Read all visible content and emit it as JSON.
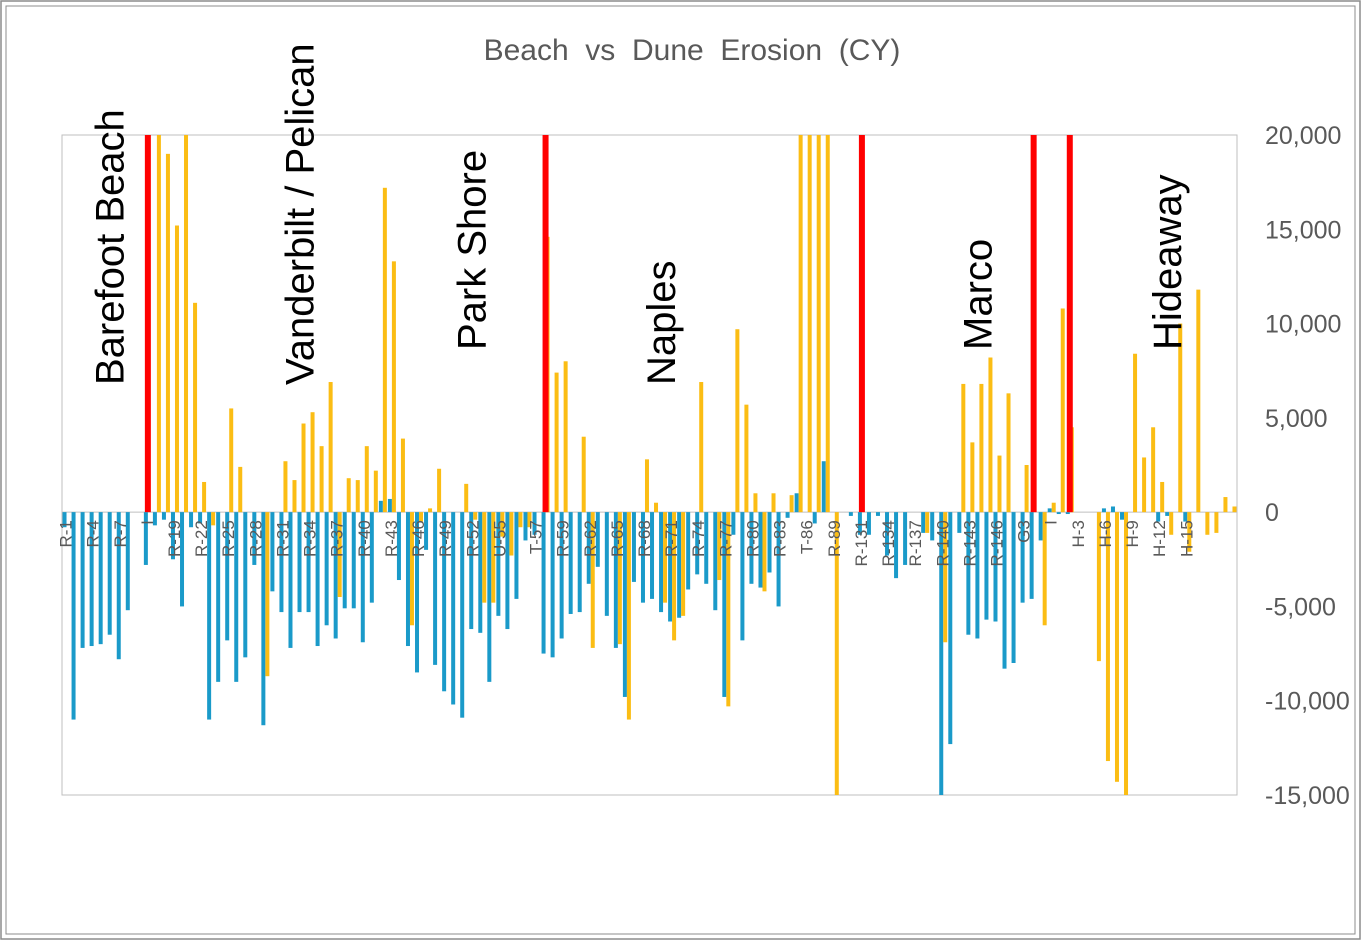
{
  "chart_data": {
    "type": "bar",
    "title": "Beach  vs  Dune  Erosion  (CY)",
    "ylim": [
      -15000,
      20000
    ],
    "yticks": [
      20000,
      15000,
      10000,
      5000,
      0,
      -5000,
      -10000,
      -15000
    ],
    "ytick_labels": [
      "20,000",
      "15,000",
      "10,000",
      "5,000",
      "0",
      "-5,000",
      "-10,000",
      "-15,000"
    ],
    "grid": false,
    "colors": {
      "beach": "#1a9ac9",
      "dune": "#fbbd14",
      "divider": "#ff0000",
      "axis": "#bfbfbf",
      "text": "#595959"
    },
    "section_labels": [
      "Barefoot Beach",
      "Vanderbilt / Pelican",
      "Park Shore",
      "Naples",
      "Marco",
      "Hideaway"
    ],
    "x": [
      "R-1",
      "R-4",
      "R-7",
      "I",
      "R-19",
      "R-22",
      "R-25",
      "R-28",
      "R-31",
      "R-34",
      "R-37",
      "R-40",
      "R-43",
      "R-46",
      "R-49",
      "R-52",
      "U-55",
      "T-57",
      "R-59",
      "R-62",
      "R-65",
      "R-68",
      "R-71",
      "R-74",
      "R-77",
      "R-80",
      "R-83",
      "T-86",
      "R-89",
      "R-131",
      "R-134",
      "R-137",
      "R-140",
      "R-143",
      "R-146",
      "G3",
      "I",
      "H-3",
      "H-6",
      "H-9",
      "H-12",
      "H-15"
    ],
    "series": [
      {
        "values": [
          [
            -800,
            0
          ],
          [
            -11000,
            0
          ],
          [
            -7200,
            0
          ],
          [
            -7100,
            0
          ],
          [
            -7000,
            0
          ],
          [
            -6500,
            0
          ],
          [
            -7800,
            0
          ],
          [
            -5200,
            0
          ],
          [
            0,
            0
          ],
          [
            -2800,
            0
          ],
          [
            -700,
            20000
          ],
          [
            -400,
            19000
          ],
          [
            -2500,
            15200
          ],
          [
            -5000,
            20000
          ],
          [
            -800,
            11100
          ],
          [
            -600,
            1600
          ],
          [
            -11000,
            -700
          ],
          [
            -9000,
            0
          ],
          [
            -6800,
            5500
          ],
          [
            -9000,
            2400
          ],
          [
            -7700,
            0
          ],
          [
            -2800,
            0
          ],
          [
            -11300,
            -8700
          ],
          [
            -4200,
            0
          ],
          [
            -5300,
            2700
          ],
          [
            -7200,
            1700
          ],
          [
            -5300,
            4700
          ],
          [
            -5300,
            5300
          ],
          [
            -7100,
            3500
          ],
          [
            -6000,
            6900
          ],
          [
            -6700,
            -4500
          ],
          [
            -5100,
            1800
          ],
          [
            -5100,
            1700
          ],
          [
            -6900,
            3500
          ],
          [
            -4800,
            2200
          ],
          [
            600,
            17200
          ],
          [
            700,
            13300
          ],
          [
            -3600,
            3900
          ],
          [
            -7100,
            -6000
          ],
          [
            -8500,
            -500
          ],
          [
            -2000,
            200
          ],
          [
            -8100,
            2300
          ],
          [
            -9500,
            0
          ],
          [
            -10200,
            0
          ],
          [
            -10900,
            1500
          ],
          [
            -6200,
            -400
          ],
          [
            -6400,
            -4800
          ],
          [
            -9000,
            -4800
          ],
          [
            -5500,
            -1300
          ],
          [
            -6200,
            -2300
          ],
          [
            -4600,
            -800
          ],
          [
            -1500,
            -800
          ],
          [
            -1200,
            0
          ],
          [
            -7500,
            14600
          ],
          [
            -7700,
            7400
          ],
          [
            -6700,
            8000
          ],
          [
            -5400,
            0
          ],
          [
            -5300,
            4000
          ],
          [
            -3800,
            -7200
          ],
          [
            -2900,
            0
          ],
          [
            -5500,
            0
          ],
          [
            -7200,
            -7000
          ],
          [
            -9800,
            -11000
          ],
          [
            -3700,
            0
          ],
          [
            -4800,
            2800
          ],
          [
            -4600,
            500
          ],
          [
            -5300,
            -4800
          ],
          [
            -5800,
            -6800
          ],
          [
            -5600,
            -5500
          ],
          [
            -4100,
            0
          ],
          [
            -3300,
            6900
          ],
          [
            -3800,
            0
          ],
          [
            -5200,
            -3600
          ],
          [
            -9800,
            -10300
          ],
          [
            -1200,
            9700
          ],
          [
            -6800,
            5700
          ],
          [
            -3800,
            1000
          ],
          [
            -4000,
            -4200
          ],
          [
            -3200,
            1000
          ],
          [
            -5000,
            0
          ],
          [
            -300,
            900
          ],
          [
            1000,
            20000
          ],
          [
            0,
            20000
          ],
          [
            -600,
            20000
          ],
          [
            2700,
            20000
          ],
          [
            0,
            -15000
          ],
          [
            0,
            0
          ],
          [
            -200,
            0
          ],
          [
            -1200,
            0
          ],
          [
            -1200,
            0
          ],
          [
            -200,
            0
          ],
          [
            -2300,
            0
          ],
          [
            -3500,
            0
          ],
          [
            -2800,
            0
          ],
          [
            0,
            0
          ],
          [
            -1100,
            -1100
          ],
          [
            -1500,
            0
          ],
          [
            -15000,
            -6900
          ],
          [
            -12300,
            0
          ],
          [
            -1100,
            6800
          ],
          [
            -6500,
            3700
          ],
          [
            -6700,
            6800
          ],
          [
            -5700,
            8200
          ],
          [
            -5800,
            3000
          ],
          [
            -8300,
            6300
          ],
          [
            -8000,
            0
          ],
          [
            -4800,
            2500
          ],
          [
            -4600,
            0
          ],
          [
            -1500,
            -6000
          ],
          [
            200,
            500
          ],
          [
            -100,
            10800
          ],
          [
            -100,
            4500
          ],
          [
            0,
            0
          ],
          [
            0,
            0
          ],
          [
            0,
            -7900
          ],
          [
            200,
            -13200
          ],
          [
            300,
            -14300
          ],
          [
            -400,
            -15000
          ],
          [
            0,
            8400
          ],
          [
            0,
            2900
          ],
          [
            0,
            4500
          ],
          [
            -500,
            1600
          ],
          [
            -200,
            -1200
          ],
          [
            0,
            10000
          ],
          [
            -500,
            -2100
          ],
          [
            0,
            11800
          ],
          [
            0,
            -1200
          ],
          [
            0,
            -1100
          ],
          [
            0,
            800
          ],
          [
            0,
            300
          ]
        ]
      }
    ],
    "dividers": [
      20000,
      20000,
      20000,
      20000,
      20000
    ]
  }
}
